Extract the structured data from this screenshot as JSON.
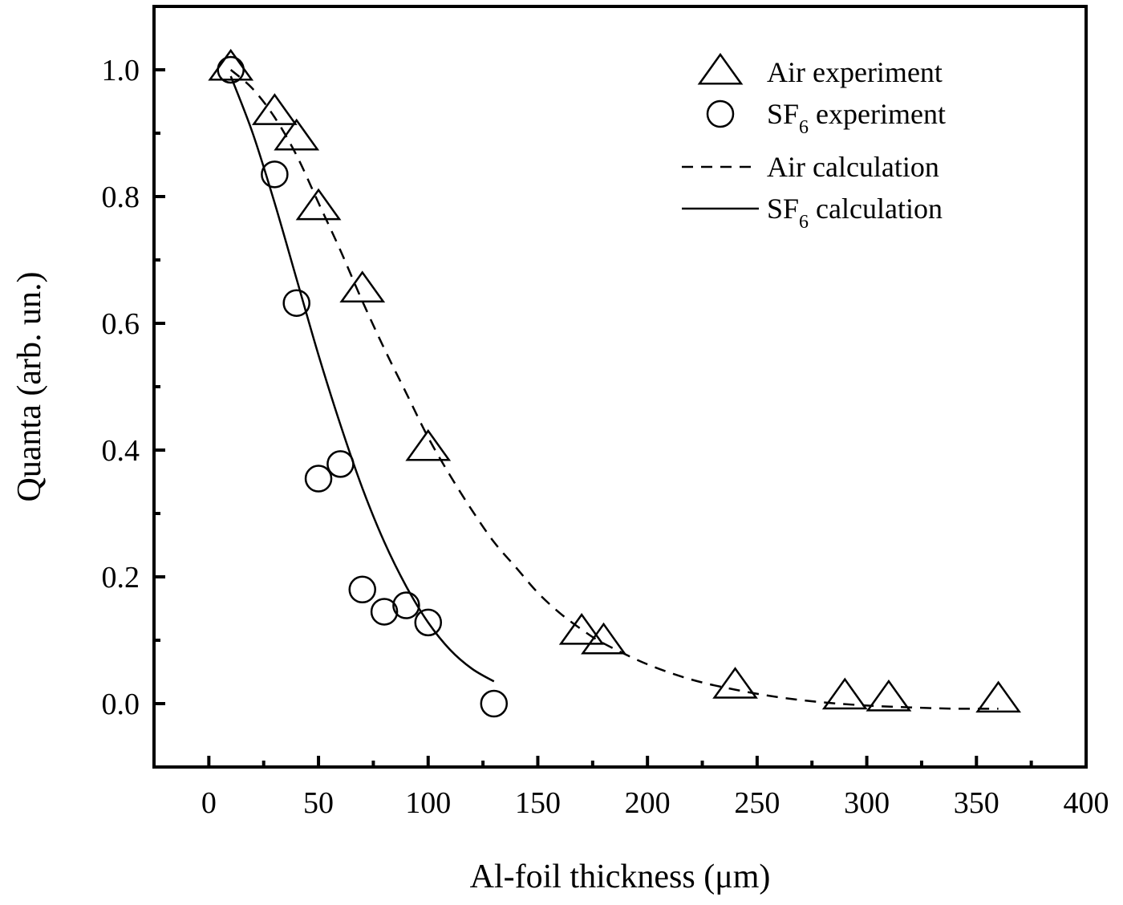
{
  "chart_data": {
    "type": "scatter",
    "title": "",
    "xlabel": "Al-foil thickness (μm)",
    "ylabel": "Quanta (arb. un.)",
    "xlim": [
      -25,
      400
    ],
    "ylim": [
      -0.1,
      1.1
    ],
    "xticks": [
      "0",
      "50",
      "100",
      "150",
      "200",
      "250",
      "300",
      "350",
      "400"
    ],
    "yticks": [
      "0.0",
      "0.2",
      "0.4",
      "0.6",
      "0.8",
      "1.0"
    ],
    "legend_position": "top-right",
    "series": [
      {
        "name": "Air experiment",
        "kind": "marker",
        "marker": "triangle",
        "points": [
          [
            10,
            1.0
          ],
          [
            30,
            0.93
          ],
          [
            40,
            0.89
          ],
          [
            50,
            0.78
          ],
          [
            70,
            0.65
          ],
          [
            100,
            0.4
          ],
          [
            170,
            0.11
          ],
          [
            180,
            0.095
          ],
          [
            240,
            0.025
          ],
          [
            290,
            0.008
          ],
          [
            310,
            0.005
          ],
          [
            360,
            0.003
          ]
        ]
      },
      {
        "name": "SF6 experiment",
        "kind": "marker",
        "marker": "circle",
        "points": [
          [
            10,
            1.0
          ],
          [
            30,
            0.835
          ],
          [
            40,
            0.632
          ],
          [
            50,
            0.355
          ],
          [
            60,
            0.378
          ],
          [
            70,
            0.18
          ],
          [
            80,
            0.145
          ],
          [
            90,
            0.155
          ],
          [
            100,
            0.128
          ],
          [
            130,
            0.0
          ]
        ]
      },
      {
        "name": "Air calculation",
        "kind": "line",
        "dash": "dashed",
        "points": [
          [
            10,
            1.0
          ],
          [
            20,
            0.97
          ],
          [
            30,
            0.925
          ],
          [
            40,
            0.865
          ],
          [
            50,
            0.79
          ],
          [
            60,
            0.715
          ],
          [
            70,
            0.635
          ],
          [
            80,
            0.56
          ],
          [
            90,
            0.49
          ],
          [
            100,
            0.42
          ],
          [
            110,
            0.36
          ],
          [
            120,
            0.305
          ],
          [
            130,
            0.255
          ],
          [
            140,
            0.215
          ],
          [
            150,
            0.175
          ],
          [
            160,
            0.143
          ],
          [
            170,
            0.117
          ],
          [
            180,
            0.095
          ],
          [
            200,
            0.062
          ],
          [
            220,
            0.038
          ],
          [
            240,
            0.022
          ],
          [
            260,
            0.01
          ],
          [
            280,
            0.002
          ],
          [
            300,
            -0.003
          ],
          [
            320,
            -0.006
          ],
          [
            340,
            -0.008
          ],
          [
            360,
            -0.008
          ]
        ]
      },
      {
        "name": "SF6 calculation",
        "kind": "line",
        "dash": "solid",
        "points": [
          [
            10,
            0.99
          ],
          [
            20,
            0.9
          ],
          [
            30,
            0.79
          ],
          [
            40,
            0.67
          ],
          [
            50,
            0.55
          ],
          [
            60,
            0.44
          ],
          [
            70,
            0.34
          ],
          [
            80,
            0.255
          ],
          [
            90,
            0.185
          ],
          [
            100,
            0.128
          ],
          [
            110,
            0.085
          ],
          [
            120,
            0.055
          ],
          [
            130,
            0.035
          ]
        ]
      }
    ],
    "legend": [
      {
        "marker": "triangle",
        "label": "Air experiment",
        "base": "Air experiment",
        "sub": ""
      },
      {
        "marker": "circle",
        "label": "SF6 experiment",
        "base": "SF",
        "sub": "6",
        "rest": " experiment"
      },
      {
        "marker": "dashed",
        "label": "Air calculation",
        "base": "Air calculation",
        "sub": ""
      },
      {
        "marker": "solid",
        "label": "SF6 calculation",
        "base": "SF",
        "sub": "6",
        "rest": " calculation"
      }
    ]
  }
}
